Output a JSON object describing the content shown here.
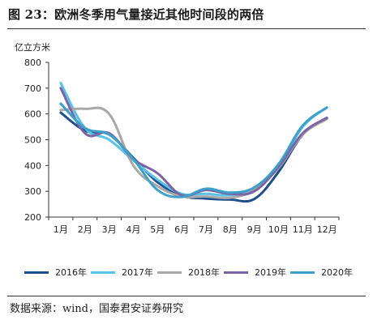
{
  "figure": {
    "title": "图 23：欧洲冬季用气量接近其他时间段的两倍",
    "source": "数据来源：wind，国泰君安证券研究"
  },
  "chart_data": {
    "type": "line",
    "ylabel": "亿立方米",
    "ylim": [
      200,
      800
    ],
    "yticks": [
      200,
      300,
      400,
      500,
      600,
      700,
      800
    ],
    "categories": [
      "1月",
      "2月",
      "3月",
      "4月",
      "5月",
      "6月",
      "7月",
      "8月",
      "9月",
      "10月",
      "11月",
      "12月"
    ],
    "grid": false,
    "legend_position": "bottom",
    "series": [
      {
        "name": "2016年",
        "color": "#1f4e8c",
        "values": [
          605,
          535,
          520,
          430,
          335,
          283,
          272,
          268,
          270,
          375,
          520,
          585
        ]
      },
      {
        "name": "2017年",
        "color": "#5bc2e7",
        "values": [
          720,
          545,
          500,
          420,
          345,
          290,
          290,
          285,
          310,
          395,
          550,
          625
        ]
      },
      {
        "name": "2018年",
        "color": "#a8a8a8",
        "values": [
          615,
          620,
          600,
          400,
          320,
          280,
          280,
          275,
          305,
          390,
          520,
          580
        ]
      },
      {
        "name": "2019年",
        "color": "#7b64a3",
        "values": [
          700,
          525,
          525,
          425,
          370,
          285,
          305,
          290,
          300,
          395,
          525,
          585
        ]
      },
      {
        "name": "2020年",
        "color": "#3ca0c8",
        "values": [
          640,
          545,
          520,
          425,
          305,
          278,
          310,
          295,
          315,
          405,
          555,
          625
        ]
      }
    ]
  }
}
